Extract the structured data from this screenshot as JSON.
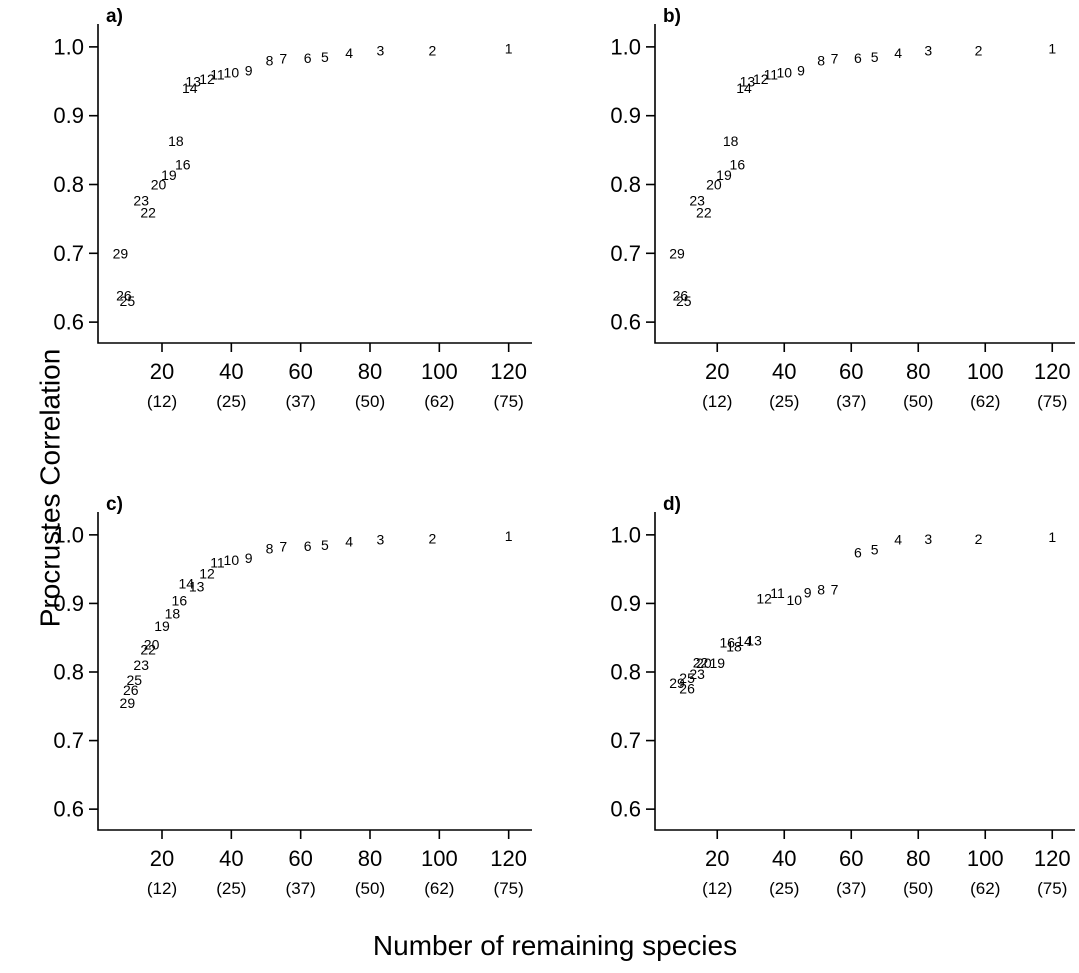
{
  "ylabel": "Procrustes Correlation",
  "xlabel": "Number of remaining species",
  "chart_data": [
    {
      "type": "scatter",
      "panel_label": "a)",
      "xlim": [
        5,
        125
      ],
      "ylim": [
        0.59,
        1.01
      ],
      "yticks": [
        0.6,
        0.7,
        0.8,
        0.9,
        1.0
      ],
      "ytick_labels": [
        "0.6",
        "0.7",
        "0.8",
        "0.9",
        "1.0"
      ],
      "xticks": [
        20,
        40,
        60,
        80,
        100,
        120
      ],
      "xtick_labels": [
        "20",
        "40",
        "60",
        "80",
        "100",
        "120"
      ],
      "xtick_sublabels": [
        "(12)",
        "(25)",
        "(37)",
        "(50)",
        "(62)",
        "(75)"
      ],
      "points": [
        {
          "label": "1",
          "x": 120,
          "y": 0.998
        },
        {
          "label": "2",
          "x": 98,
          "y": 0.995
        },
        {
          "label": "3",
          "x": 83,
          "y": 0.995
        },
        {
          "label": "4",
          "x": 74,
          "y": 0.991
        },
        {
          "label": "5",
          "x": 67,
          "y": 0.985
        },
        {
          "label": "6",
          "x": 62,
          "y": 0.984
        },
        {
          "label": "7",
          "x": 55,
          "y": 0.983
        },
        {
          "label": "8",
          "x": 51,
          "y": 0.98
        },
        {
          "label": "9",
          "x": 45,
          "y": 0.966
        },
        {
          "label": "10",
          "x": 40,
          "y": 0.963
        },
        {
          "label": "11",
          "x": 36,
          "y": 0.96
        },
        {
          "label": "12",
          "x": 33,
          "y": 0.953
        },
        {
          "label": "13",
          "x": 29,
          "y": 0.95
        },
        {
          "label": "14",
          "x": 28,
          "y": 0.94
        },
        {
          "label": "16",
          "x": 26,
          "y": 0.829
        },
        {
          "label": "18",
          "x": 24,
          "y": 0.863
        },
        {
          "label": "19",
          "x": 22,
          "y": 0.814
        },
        {
          "label": "20",
          "x": 19,
          "y": 0.8
        },
        {
          "label": "22",
          "x": 16,
          "y": 0.759
        },
        {
          "label": "23",
          "x": 14,
          "y": 0.777
        },
        {
          "label": "25",
          "x": 10,
          "y": 0.631
        },
        {
          "label": "26",
          "x": 9,
          "y": 0.639
        },
        {
          "label": "29",
          "x": 8,
          "y": 0.7
        }
      ]
    },
    {
      "type": "scatter",
      "panel_label": "b)",
      "xlim": [
        5,
        125
      ],
      "ylim": [
        0.59,
        1.01
      ],
      "yticks": [
        0.6,
        0.7,
        0.8,
        0.9,
        1.0
      ],
      "ytick_labels": [
        "0.6",
        "0.7",
        "0.8",
        "0.9",
        "1.0"
      ],
      "xticks": [
        20,
        40,
        60,
        80,
        100,
        120
      ],
      "xtick_labels": [
        "20",
        "40",
        "60",
        "80",
        "100",
        "120"
      ],
      "xtick_sublabels": [
        "(12)",
        "(25)",
        "(37)",
        "(50)",
        "(62)",
        "(75)"
      ],
      "points": [
        {
          "label": "1",
          "x": 120,
          "y": 0.998
        },
        {
          "label": "2",
          "x": 98,
          "y": 0.995
        },
        {
          "label": "3",
          "x": 83,
          "y": 0.995
        },
        {
          "label": "4",
          "x": 74,
          "y": 0.991
        },
        {
          "label": "5",
          "x": 67,
          "y": 0.985
        },
        {
          "label": "6",
          "x": 62,
          "y": 0.984
        },
        {
          "label": "7",
          "x": 55,
          "y": 0.983
        },
        {
          "label": "8",
          "x": 51,
          "y": 0.98
        },
        {
          "label": "9",
          "x": 45,
          "y": 0.966
        },
        {
          "label": "10",
          "x": 40,
          "y": 0.963
        },
        {
          "label": "11",
          "x": 36,
          "y": 0.96
        },
        {
          "label": "12",
          "x": 33,
          "y": 0.953
        },
        {
          "label": "13",
          "x": 29,
          "y": 0.95
        },
        {
          "label": "14",
          "x": 28,
          "y": 0.94
        },
        {
          "label": "16",
          "x": 26,
          "y": 0.829
        },
        {
          "label": "18",
          "x": 24,
          "y": 0.863
        },
        {
          "label": "19",
          "x": 22,
          "y": 0.814
        },
        {
          "label": "20",
          "x": 19,
          "y": 0.8
        },
        {
          "label": "22",
          "x": 16,
          "y": 0.759
        },
        {
          "label": "23",
          "x": 14,
          "y": 0.777
        },
        {
          "label": "25",
          "x": 10,
          "y": 0.631
        },
        {
          "label": "26",
          "x": 9,
          "y": 0.639
        },
        {
          "label": "29",
          "x": 8,
          "y": 0.7
        }
      ]
    },
    {
      "type": "scatter",
      "panel_label": "c)",
      "xlim": [
        5,
        125
      ],
      "ylim": [
        0.59,
        1.01
      ],
      "yticks": [
        0.6,
        0.7,
        0.8,
        0.9,
        1.0
      ],
      "ytick_labels": [
        "0.6",
        "0.7",
        "0.8",
        "0.9",
        "1.0"
      ],
      "xticks": [
        20,
        40,
        60,
        80,
        100,
        120
      ],
      "xtick_labels": [
        "20",
        "40",
        "60",
        "80",
        "100",
        "120"
      ],
      "xtick_sublabels": [
        "(12)",
        "(25)",
        "(37)",
        "(50)",
        "(62)",
        "(75)"
      ],
      "points": [
        {
          "label": "1",
          "x": 120,
          "y": 0.998
        },
        {
          "label": "2",
          "x": 98,
          "y": 0.995
        },
        {
          "label": "3",
          "x": 83,
          "y": 0.993
        },
        {
          "label": "4",
          "x": 74,
          "y": 0.99
        },
        {
          "label": "5",
          "x": 67,
          "y": 0.985
        },
        {
          "label": "6",
          "x": 62,
          "y": 0.984
        },
        {
          "label": "7",
          "x": 55,
          "y": 0.983
        },
        {
          "label": "8",
          "x": 51,
          "y": 0.98
        },
        {
          "label": "9",
          "x": 45,
          "y": 0.966
        },
        {
          "label": "10",
          "x": 40,
          "y": 0.963
        },
        {
          "label": "11",
          "x": 36,
          "y": 0.96
        },
        {
          "label": "12",
          "x": 33,
          "y": 0.944
        },
        {
          "label": "13",
          "x": 30,
          "y": 0.925
        },
        {
          "label": "14",
          "x": 27,
          "y": 0.929
        },
        {
          "label": "16",
          "x": 25,
          "y": 0.904
        },
        {
          "label": "18",
          "x": 23,
          "y": 0.885
        },
        {
          "label": "19",
          "x": 20,
          "y": 0.867
        },
        {
          "label": "20",
          "x": 17,
          "y": 0.84
        },
        {
          "label": "22",
          "x": 16,
          "y": 0.833
        },
        {
          "label": "23",
          "x": 14,
          "y": 0.81
        },
        {
          "label": "25",
          "x": 12,
          "y": 0.788
        },
        {
          "label": "26",
          "x": 11,
          "y": 0.774
        },
        {
          "label": "29",
          "x": 10,
          "y": 0.755
        }
      ]
    },
    {
      "type": "scatter",
      "panel_label": "d)",
      "xlim": [
        5,
        125
      ],
      "ylim": [
        0.59,
        1.01
      ],
      "yticks": [
        0.6,
        0.7,
        0.8,
        0.9,
        1.0
      ],
      "ytick_labels": [
        "0.6",
        "0.7",
        "0.8",
        "0.9",
        "1.0"
      ],
      "xticks": [
        20,
        40,
        60,
        80,
        100,
        120
      ],
      "xtick_labels": [
        "20",
        "40",
        "60",
        "80",
        "100",
        "120"
      ],
      "xtick_sublabels": [
        "(12)",
        "(25)",
        "(37)",
        "(50)",
        "(62)",
        "(75)"
      ],
      "points": [
        {
          "label": "1",
          "x": 120,
          "y": 0.997
        },
        {
          "label": "2",
          "x": 98,
          "y": 0.994
        },
        {
          "label": "3",
          "x": 83,
          "y": 0.994
        },
        {
          "label": "4",
          "x": 74,
          "y": 0.993
        },
        {
          "label": "5",
          "x": 67,
          "y": 0.979
        },
        {
          "label": "6",
          "x": 62,
          "y": 0.974
        },
        {
          "label": "7",
          "x": 55,
          "y": 0.92
        },
        {
          "label": "8",
          "x": 51,
          "y": 0.92
        },
        {
          "label": "9",
          "x": 47,
          "y": 0.916
        },
        {
          "label": "10",
          "x": 43,
          "y": 0.905
        },
        {
          "label": "11",
          "x": 38,
          "y": 0.915
        },
        {
          "label": "12",
          "x": 34,
          "y": 0.907
        },
        {
          "label": "13",
          "x": 31,
          "y": 0.846
        },
        {
          "label": "14",
          "x": 28,
          "y": 0.845
        },
        {
          "label": "16",
          "x": 23,
          "y": 0.843
        },
        {
          "label": "18",
          "x": 25,
          "y": 0.837
        },
        {
          "label": "19",
          "x": 20,
          "y": 0.813
        },
        {
          "label": "20",
          "x": 16,
          "y": 0.813
        },
        {
          "label": "22",
          "x": 15,
          "y": 0.814
        },
        {
          "label": "23",
          "x": 14,
          "y": 0.797
        },
        {
          "label": "25",
          "x": 11,
          "y": 0.791
        },
        {
          "label": "26",
          "x": 11,
          "y": 0.776
        },
        {
          "label": "29",
          "x": 8,
          "y": 0.784
        }
      ]
    }
  ]
}
